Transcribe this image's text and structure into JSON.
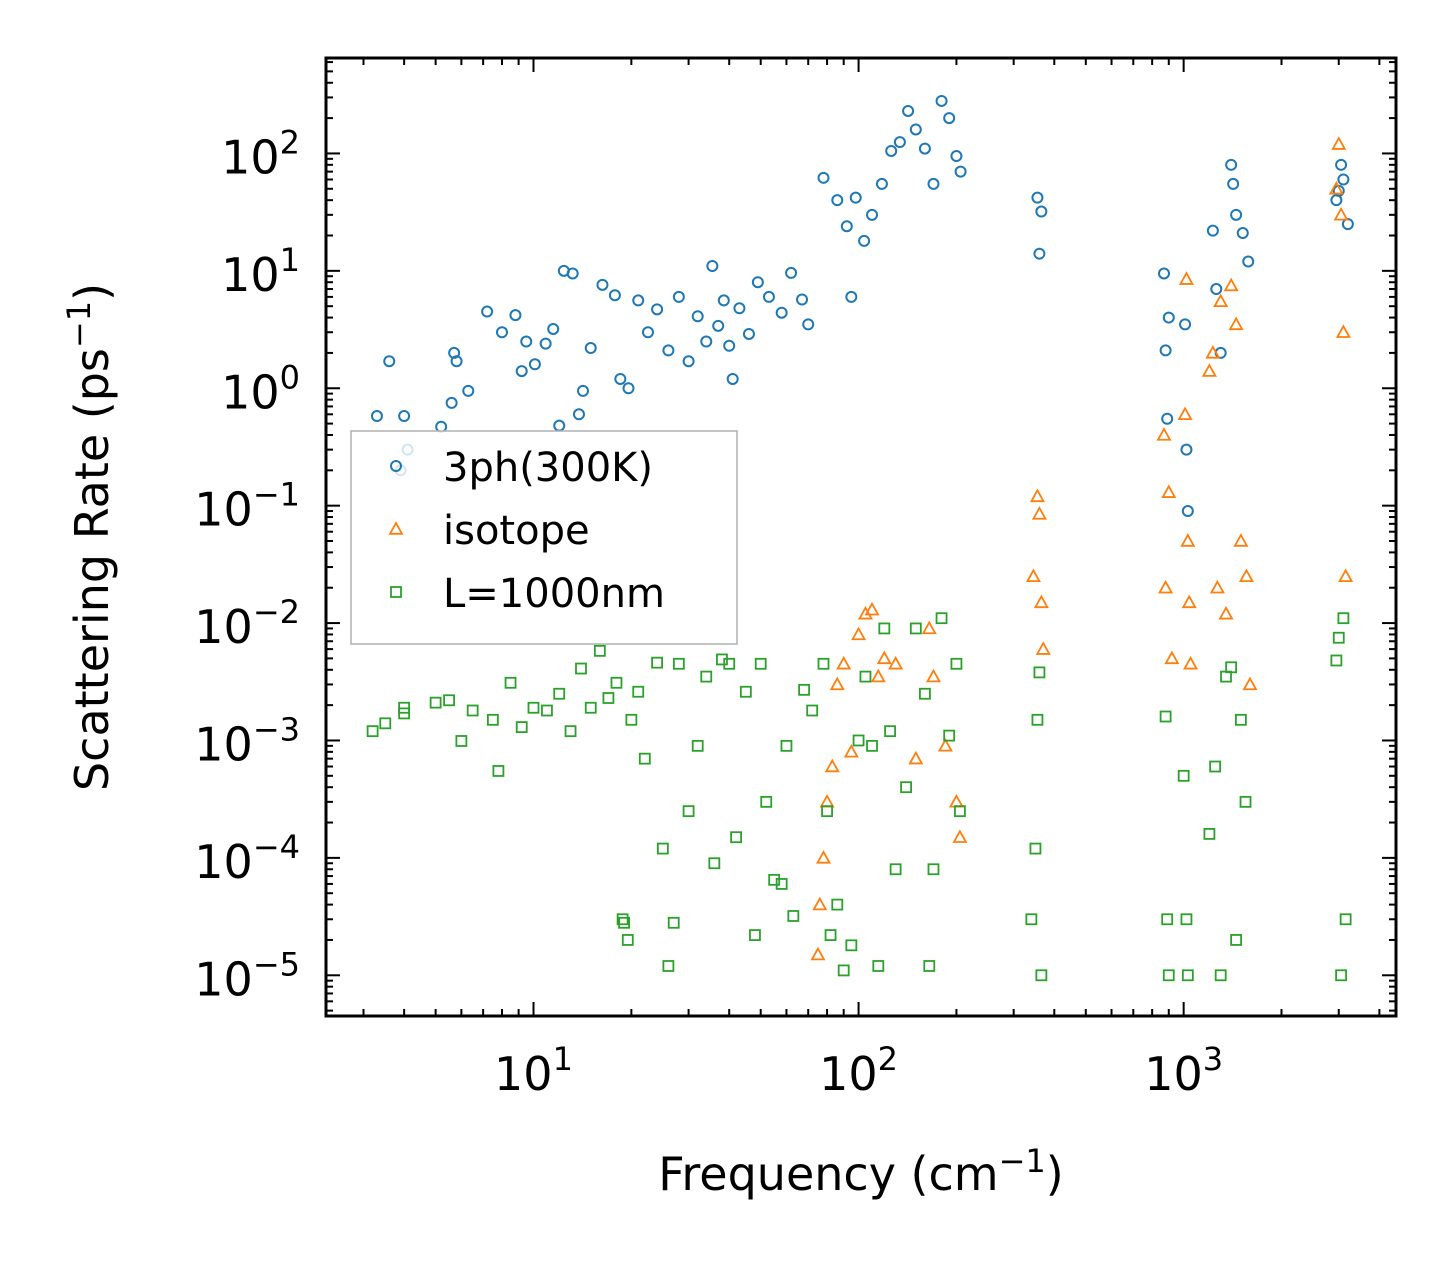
{
  "chart_data": {
    "type": "scatter",
    "title": "",
    "xlabel": {
      "text": "Frequency (cm",
      "sup": "−1",
      "close": ")"
    },
    "ylabel": {
      "text": "Scattering Rate (ps",
      "sup": "−1",
      "close": ")"
    },
    "xscale": "log",
    "yscale": "log",
    "xlim": [
      2.3,
      4500
    ],
    "ylim": [
      4.5e-06,
      650
    ],
    "x_ticks": [
      {
        "value": 10,
        "base": "10",
        "exp": "1"
      },
      {
        "value": 100,
        "base": "10",
        "exp": "2"
      },
      {
        "value": 1000,
        "base": "10",
        "exp": "3"
      }
    ],
    "y_ticks": [
      {
        "value": 1e-05,
        "base": "10",
        "exp": "−5"
      },
      {
        "value": 0.0001,
        "base": "10",
        "exp": "−4"
      },
      {
        "value": 0.001,
        "base": "10",
        "exp": "−3"
      },
      {
        "value": 0.01,
        "base": "10",
        "exp": "−2"
      },
      {
        "value": 0.1,
        "base": "10",
        "exp": "−1"
      },
      {
        "value": 1,
        "base": "10",
        "exp": "0"
      },
      {
        "value": 10,
        "base": "10",
        "exp": "1"
      },
      {
        "value": 100,
        "base": "10",
        "exp": "2"
      }
    ],
    "legend_position": "center-left",
    "series": [
      {
        "name": "3ph(300K)",
        "marker": "circle",
        "color": "#1f77b4",
        "points": [
          [
            3.3,
            0.58
          ],
          [
            3.6,
            1.7
          ],
          [
            4.0,
            0.58
          ],
          [
            4.1,
            0.3
          ],
          [
            3.9,
            0.2
          ],
          [
            5.2,
            0.47
          ],
          [
            5.6,
            0.75
          ],
          [
            5.7,
            2.0
          ],
          [
            5.8,
            1.7
          ],
          [
            6.3,
            0.95
          ],
          [
            7.2,
            4.5
          ],
          [
            8.0,
            3.0
          ],
          [
            8.8,
            4.2
          ],
          [
            9.2,
            1.4
          ],
          [
            9.5,
            2.5
          ],
          [
            10.1,
            1.6
          ],
          [
            10.9,
            2.4
          ],
          [
            11.5,
            3.2
          ],
          [
            12.0,
            0.48
          ],
          [
            12.4,
            10.0
          ],
          [
            13.2,
            9.5
          ],
          [
            13.8,
            0.6
          ],
          [
            14.2,
            0.95
          ],
          [
            15.0,
            2.2
          ],
          [
            16.3,
            7.6
          ],
          [
            17.8,
            6.2
          ],
          [
            18.5,
            1.2
          ],
          [
            19.6,
            1.0
          ],
          [
            21.0,
            5.6
          ],
          [
            22.5,
            3.0
          ],
          [
            24.0,
            4.7
          ],
          [
            26.0,
            2.1
          ],
          [
            28.0,
            6.0
          ],
          [
            30.0,
            1.7
          ],
          [
            32.0,
            4.1
          ],
          [
            34.0,
            2.5
          ],
          [
            35.5,
            11.0
          ],
          [
            37.0,
            3.4
          ],
          [
            38.5,
            5.6
          ],
          [
            40.0,
            2.3
          ],
          [
            41.0,
            1.2
          ],
          [
            43.0,
            4.8
          ],
          [
            46.0,
            2.9
          ],
          [
            49.0,
            8.0
          ],
          [
            53.0,
            6.0
          ],
          [
            58.0,
            4.4
          ],
          [
            62.0,
            9.6
          ],
          [
            67.0,
            5.7
          ],
          [
            70.0,
            3.5
          ],
          [
            78.0,
            62
          ],
          [
            86.0,
            40
          ],
          [
            92.0,
            24
          ],
          [
            95.0,
            6.0
          ],
          [
            98.0,
            42
          ],
          [
            104.0,
            18
          ],
          [
            110.0,
            30
          ],
          [
            118.0,
            55
          ],
          [
            126.0,
            105
          ],
          [
            134.0,
            125
          ],
          [
            142.0,
            230
          ],
          [
            150.0,
            160
          ],
          [
            160.0,
            110
          ],
          [
            170.0,
            55
          ],
          [
            180.0,
            280
          ],
          [
            190.0,
            200
          ],
          [
            200.0,
            95
          ],
          [
            206.0,
            70
          ],
          [
            355.0,
            42
          ],
          [
            360.0,
            14
          ],
          [
            365.0,
            32
          ],
          [
            870.0,
            9.5
          ],
          [
            880.0,
            2.1
          ],
          [
            890.0,
            0.55
          ],
          [
            900.0,
            4.0
          ],
          [
            1010.0,
            3.5
          ],
          [
            1020.0,
            0.3
          ],
          [
            1030.0,
            0.09
          ],
          [
            1230.0,
            22
          ],
          [
            1260.0,
            7.0
          ],
          [
            1300.0,
            2.0
          ],
          [
            1400.0,
            80
          ],
          [
            1420.0,
            55
          ],
          [
            1450.0,
            30
          ],
          [
            1520.0,
            21
          ],
          [
            1580.0,
            12
          ],
          [
            2950.0,
            40
          ],
          [
            3000.0,
            48
          ],
          [
            3050.0,
            80
          ],
          [
            3100.0,
            60
          ],
          [
            3200.0,
            25
          ]
        ]
      },
      {
        "name": "isotope",
        "marker": "triangle",
        "color": "#ff7f0e",
        "points": [
          [
            75.0,
            1.5e-05
          ],
          [
            76.0,
            4e-05
          ],
          [
            78.0,
            0.0001
          ],
          [
            80.0,
            0.0003
          ],
          [
            83.0,
            0.0006
          ],
          [
            86.0,
            0.003
          ],
          [
            90.0,
            0.0045
          ],
          [
            95.0,
            0.0008
          ],
          [
            100.0,
            0.008
          ],
          [
            105.0,
            0.012
          ],
          [
            110.0,
            0.013
          ],
          [
            115.0,
            0.0035
          ],
          [
            120.0,
            0.005
          ],
          [
            130.0,
            0.0045
          ],
          [
            150.0,
            0.0007
          ],
          [
            165.0,
            0.009
          ],
          [
            170.0,
            0.0035
          ],
          [
            185.0,
            0.0009
          ],
          [
            200.0,
            0.0003
          ],
          [
            205.0,
            0.00015
          ],
          [
            345.0,
            0.025
          ],
          [
            355.0,
            0.12
          ],
          [
            360.0,
            0.085
          ],
          [
            365.0,
            0.015
          ],
          [
            370.0,
            0.006
          ],
          [
            870.0,
            0.4
          ],
          [
            880.0,
            0.02
          ],
          [
            900.0,
            0.13
          ],
          [
            920.0,
            0.005
          ],
          [
            1010.0,
            0.6
          ],
          [
            1020.0,
            8.5
          ],
          [
            1030.0,
            0.05
          ],
          [
            1040.0,
            0.015
          ],
          [
            1050.0,
            0.0045
          ],
          [
            1200.0,
            1.4
          ],
          [
            1230.0,
            2.0
          ],
          [
            1270.0,
            0.02
          ],
          [
            1300.0,
            5.5
          ],
          [
            1350.0,
            0.012
          ],
          [
            1400.0,
            7.5
          ],
          [
            1450.0,
            3.5
          ],
          [
            1500.0,
            0.05
          ],
          [
            1560.0,
            0.025
          ],
          [
            1600.0,
            0.003
          ],
          [
            2950.0,
            50
          ],
          [
            3000.0,
            120
          ],
          [
            3050.0,
            30
          ],
          [
            3100.0,
            3.0
          ],
          [
            3150.0,
            0.025
          ]
        ]
      },
      {
        "name": "L=1000nm",
        "marker": "square",
        "color": "#2ca02c",
        "points": [
          [
            3.2,
            0.0012
          ],
          [
            3.5,
            0.0014
          ],
          [
            4.0,
            0.0017
          ],
          [
            4.0,
            0.0019
          ],
          [
            5.0,
            0.0021
          ],
          [
            5.5,
            0.0022
          ],
          [
            6.0,
            0.00099
          ],
          [
            6.5,
            0.0018
          ],
          [
            7.5,
            0.0015
          ],
          [
            7.8,
            0.00055
          ],
          [
            8.5,
            0.0031
          ],
          [
            9.2,
            0.0013
          ],
          [
            10.0,
            0.0019
          ],
          [
            11.0,
            0.0018
          ],
          [
            12.0,
            0.0025
          ],
          [
            13.0,
            0.0012
          ],
          [
            14.0,
            0.0041
          ],
          [
            15.0,
            0.0019
          ],
          [
            16.0,
            0.0058
          ],
          [
            17.0,
            0.0023
          ],
          [
            18.0,
            0.0031
          ],
          [
            18.8,
            3e-05
          ],
          [
            19.0,
            2.8e-05
          ],
          [
            19.5,
            2e-05
          ],
          [
            20.0,
            0.0015
          ],
          [
            21.0,
            0.0026
          ],
          [
            22.0,
            0.0007
          ],
          [
            24.0,
            0.0046
          ],
          [
            25.0,
            0.00012
          ],
          [
            26.0,
            1.2e-05
          ],
          [
            27.0,
            2.8e-05
          ],
          [
            28.0,
            0.0045
          ],
          [
            30.0,
            0.00025
          ],
          [
            32.0,
            0.0009
          ],
          [
            34.0,
            0.0035
          ],
          [
            36.0,
            9e-05
          ],
          [
            38.0,
            0.0049
          ],
          [
            40.0,
            0.0045
          ],
          [
            42.0,
            0.00015
          ],
          [
            45.0,
            0.0026
          ],
          [
            48.0,
            2.2e-05
          ],
          [
            50.0,
            0.0045
          ],
          [
            52.0,
            0.0003
          ],
          [
            55.0,
            6.5e-05
          ],
          [
            58.0,
            6e-05
          ],
          [
            60.0,
            0.0009
          ],
          [
            63.0,
            3.2e-05
          ],
          [
            68.0,
            0.0027
          ],
          [
            72.0,
            0.0018
          ],
          [
            78.0,
            0.0045
          ],
          [
            80.0,
            0.00025
          ],
          [
            82.0,
            2.2e-05
          ],
          [
            86.0,
            4e-05
          ],
          [
            90.0,
            1.1e-05
          ],
          [
            95.0,
            1.8e-05
          ],
          [
            100.0,
            0.001
          ],
          [
            105.0,
            0.0035
          ],
          [
            110.0,
            0.0009
          ],
          [
            115.0,
            1.2e-05
          ],
          [
            120.0,
            0.009
          ],
          [
            125.0,
            0.0012
          ],
          [
            130.0,
            8e-05
          ],
          [
            140.0,
            0.0004
          ],
          [
            150.0,
            0.009
          ],
          [
            160.0,
            0.0025
          ],
          [
            165.0,
            1.2e-05
          ],
          [
            170.0,
            8e-05
          ],
          [
            180.0,
            0.011
          ],
          [
            190.0,
            0.0011
          ],
          [
            200.0,
            0.0045
          ],
          [
            205.0,
            0.00025
          ],
          [
            340.0,
            3e-05
          ],
          [
            350.0,
            0.00012
          ],
          [
            355.0,
            0.0015
          ],
          [
            360.0,
            0.0038
          ],
          [
            365.0,
            1e-05
          ],
          [
            880.0,
            0.0016
          ],
          [
            890.0,
            3e-05
          ],
          [
            900.0,
            1e-05
          ],
          [
            1000.0,
            0.0005
          ],
          [
            1020.0,
            3e-05
          ],
          [
            1030.0,
            1e-05
          ],
          [
            1200.0,
            0.00016
          ],
          [
            1250.0,
            0.0006
          ],
          [
            1300.0,
            1e-05
          ],
          [
            1350.0,
            0.0035
          ],
          [
            1400.0,
            0.0042
          ],
          [
            1450.0,
            2e-05
          ],
          [
            1500.0,
            0.0015
          ],
          [
            1550.0,
            0.0003
          ],
          [
            2950.0,
            0.0048
          ],
          [
            3000.0,
            0.0075
          ],
          [
            3050.0,
            1e-05
          ],
          [
            3100.0,
            0.011
          ],
          [
            3150.0,
            3e-05
          ]
        ]
      }
    ]
  }
}
